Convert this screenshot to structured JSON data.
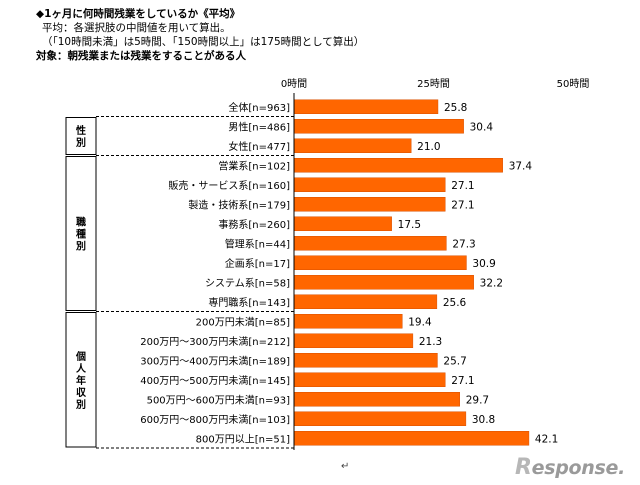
{
  "header": {
    "title": "◆1ヶ月に何時間残業をしているか《平均》",
    "line2": "平均：各選択肢の中間値を用いて算出。",
    "line3": "（「10時間未満」は5時間、「150時間以上」は175時間として算出）",
    "line4": "対象：朝残業または残業をすることがある人"
  },
  "footer_mark": "↵",
  "logo": {
    "r": "R",
    "rest": "esponse."
  },
  "colors": {
    "bar": "#ff6600",
    "bar_stroke": "#d95000",
    "axis": "#000000"
  },
  "chart_data": {
    "type": "bar",
    "orientation": "horizontal",
    "xlim": [
      0,
      50
    ],
    "ticks": [
      {
        "value": 0,
        "label": "0時間"
      },
      {
        "value": 25,
        "label": "25時間"
      },
      {
        "value": 50,
        "label": "50時間"
      }
    ],
    "groups": [
      {
        "label": "",
        "rows": [
          0
        ]
      },
      {
        "label": "性別",
        "rows": [
          1,
          2
        ]
      },
      {
        "label": "職種別",
        "rows": [
          3,
          4,
          5,
          6,
          7,
          8,
          9,
          10
        ]
      },
      {
        "label": "個人年収別",
        "rows": [
          11,
          12,
          13,
          14,
          15,
          16,
          17
        ]
      }
    ],
    "categories": [
      "全体[n=963]",
      "男性[n=486]",
      "女性[n=477]",
      "営業系[n=102]",
      "販売・サービス系[n=160]",
      "製造・技術系[n=179]",
      "事務系[n=260]",
      "管理系[n=44]",
      "企画系[n=17]",
      "システム系[n=58]",
      "専門職系[n=143]",
      "200万円未満[n=85]",
      "200万円～300万円未満[n=212]",
      "300万円～400万円未満[n=189]",
      "400万円～500万円未満[n=145]",
      "500万円～600万円未満[n=93]",
      "600万円～800万円未満[n=103]",
      "800万円以上[n=51]"
    ],
    "values": [
      25.8,
      30.4,
      21.0,
      37.4,
      27.1,
      27.1,
      17.5,
      27.3,
      30.9,
      32.2,
      25.6,
      19.4,
      21.3,
      25.7,
      27.1,
      29.7,
      30.8,
      42.1
    ],
    "value_labels": [
      "25.8",
      "30.4",
      "21.0",
      "37.4",
      "27.1",
      "27.1",
      "17.5",
      "27.3",
      "30.9",
      "32.2",
      "25.6",
      "19.4",
      "21.3",
      "25.7",
      "27.1",
      "29.7",
      "30.8",
      "42.1"
    ]
  }
}
